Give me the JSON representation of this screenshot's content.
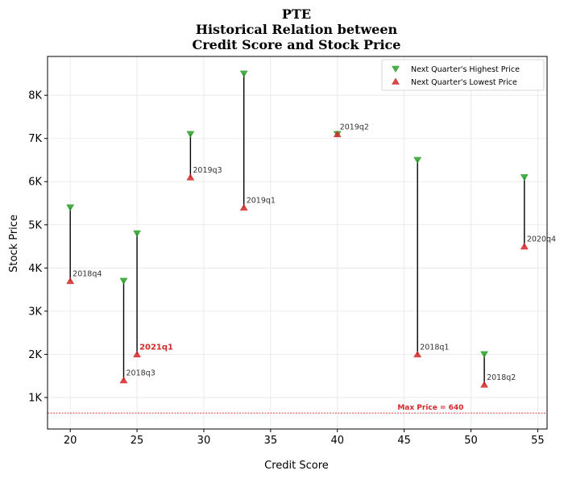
{
  "chart_data": {
    "type": "scatter",
    "title": [
      "PTE",
      "Historical Relation between",
      "Credit Score and Stock Price"
    ],
    "xlabel": "Credit Score",
    "ylabel": "Stock Price",
    "xlim": [
      18.3,
      55.7
    ],
    "ylim": [
      270,
      8900
    ],
    "x_ticks": [
      20,
      25,
      30,
      35,
      40,
      45,
      50,
      55
    ],
    "y_ticks": [
      1000,
      2000,
      3000,
      4000,
      5000,
      6000,
      7000,
      8000
    ],
    "y_tick_labels": [
      "1K",
      "2K",
      "3K",
      "4K",
      "5K",
      "6K",
      "7K",
      "8K"
    ],
    "grid": true,
    "legend_position": "top-right",
    "series": [
      {
        "name": "Next Quarter's Highest Price",
        "marker": "triangle-down",
        "color": "#2ca02c"
      },
      {
        "name": "Next Quarter's Lowest Price",
        "marker": "triangle-up",
        "color": "#d62728"
      }
    ],
    "points": [
      {
        "label": "2018q4",
        "x": 20,
        "high": 5400,
        "low": 3700,
        "highlight": false
      },
      {
        "label": "2018q3",
        "x": 24,
        "high": 3700,
        "low": 1400,
        "highlight": false
      },
      {
        "label": "2021q1",
        "x": 25,
        "high": 4800,
        "low": 2000,
        "highlight": true
      },
      {
        "label": "2019q3",
        "x": 29,
        "high": 7100,
        "low": 6100,
        "highlight": false
      },
      {
        "label": "2019q1",
        "x": 33,
        "high": 8500,
        "low": 5400,
        "highlight": false
      },
      {
        "label": "2019q2",
        "x": 40,
        "high": 7100,
        "low": 7100,
        "highlight": false
      },
      {
        "label": "2018q1",
        "x": 46,
        "high": 6500,
        "low": 2000,
        "highlight": false
      },
      {
        "label": "2018q2",
        "x": 51,
        "high": 2000,
        "low": 1300,
        "highlight": false
      },
      {
        "label": "2020q4",
        "x": 54,
        "high": 6100,
        "low": 4500,
        "highlight": false
      }
    ],
    "reference_line": {
      "value": 640,
      "label": "Max Price = 640",
      "color": "#d62728"
    }
  }
}
